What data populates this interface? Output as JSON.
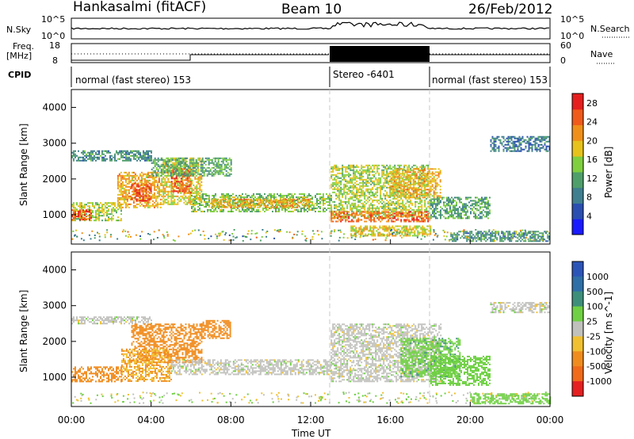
{
  "header": {
    "station": "Hankasalmi (fitACF)",
    "beam": "Beam 10",
    "date": "26/Feb/2012"
  },
  "strip_labels": {
    "nsky": "N.Sky",
    "nsearch": "N.Search",
    "freq_line1": "Freq.",
    "freq_line2": "[MHz]",
    "nave": "Nave",
    "cpid": "CPID"
  },
  "strip_ticks": {
    "nsky_top": "10^5",
    "nsky_bottom": "10^0",
    "nsearch_top": "10^5",
    "nsearch_bottom": "10^0",
    "freq_top": "18",
    "freq_bottom": "8",
    "nave_top": "60",
    "nave_bottom": "0"
  },
  "cpid_segments": [
    {
      "label": "normal (fast stereo) 153",
      "start_hour": 0,
      "end_hour": 13
    },
    {
      "label": "Stereo -6401",
      "start_hour": 13,
      "end_hour": 18
    },
    {
      "label": "normal (fast stereo) 153",
      "start_hour": 18,
      "end_hour": 24
    }
  ],
  "chart_data": [
    {
      "type": "heatmap",
      "title": "Power",
      "xlabel": "Time UT",
      "ylabel": "Slant Range [km]",
      "x_ticks": [
        "00:00",
        "04:00",
        "08:00",
        "12:00",
        "16:00",
        "20:00",
        "00:00"
      ],
      "y_ticks": [
        "1000",
        "2000",
        "3000",
        "4000"
      ],
      "xlim_hours": [
        0,
        24
      ],
      "ylim_km": [
        180,
        4500
      ],
      "colorbar": {
        "label": "Power [dB]",
        "ticks": [
          "4",
          "8",
          "12",
          "16",
          "20",
          "24",
          "28"
        ],
        "range": [
          0,
          30
        ]
      },
      "bands": [
        {
          "start_hour": 0.0,
          "end_hour": 2.5,
          "range_km": [
            850,
            1350
          ],
          "value": 16
        },
        {
          "start_hour": 0.0,
          "end_hour": 1.0,
          "range_km": [
            850,
            1150
          ],
          "value": 26
        },
        {
          "start_hour": 2.3,
          "end_hour": 4.5,
          "range_km": [
            1200,
            2200
          ],
          "value": 20
        },
        {
          "start_hour": 3.0,
          "end_hour": 4.0,
          "range_km": [
            1400,
            1900
          ],
          "value": 26
        },
        {
          "start_hour": 4.5,
          "end_hour": 6.5,
          "range_km": [
            1300,
            2600
          ],
          "value": 18
        },
        {
          "start_hour": 5.0,
          "end_hour": 6.0,
          "range_km": [
            1600,
            2300
          ],
          "value": 25
        },
        {
          "start_hour": 0.0,
          "end_hour": 4.0,
          "range_km": [
            2500,
            2800
          ],
          "value": 10
        },
        {
          "start_hour": 4.0,
          "end_hour": 8.0,
          "range_km": [
            2100,
            2600
          ],
          "value": 12
        },
        {
          "start_hour": 6.0,
          "end_hour": 13.0,
          "range_km": [
            1100,
            1600
          ],
          "value": 14
        },
        {
          "start_hour": 7.0,
          "end_hour": 12.0,
          "range_km": [
            1200,
            1450
          ],
          "value": 20
        },
        {
          "start_hour": 13.0,
          "end_hour": 18.0,
          "range_km": [
            900,
            2400
          ],
          "value": 16
        },
        {
          "start_hour": 13.0,
          "end_hour": 18.0,
          "range_km": [
            800,
            1100
          ],
          "value": 24
        },
        {
          "start_hour": 14.0,
          "end_hour": 18.0,
          "range_km": [
            400,
            700
          ],
          "value": 18
        },
        {
          "start_hour": 16.0,
          "end_hour": 18.5,
          "range_km": [
            1500,
            2300
          ],
          "value": 20
        },
        {
          "start_hour": 18.0,
          "end_hour": 21.0,
          "range_km": [
            900,
            1500
          ],
          "value": 12
        },
        {
          "start_hour": 19.0,
          "end_hour": 24.0,
          "range_km": [
            250,
            550
          ],
          "value": 10
        },
        {
          "start_hour": 21.0,
          "end_hour": 24.0,
          "range_km": [
            2800,
            3200
          ],
          "value": 8
        }
      ]
    },
    {
      "type": "heatmap",
      "title": "Velocity",
      "xlabel": "Time UT",
      "ylabel": "Slant Range [km]",
      "x_ticks": [
        "00:00",
        "04:00",
        "08:00",
        "12:00",
        "16:00",
        "20:00",
        "00:00"
      ],
      "y_ticks": [
        "1000",
        "2000",
        "3000",
        "4000"
      ],
      "xlim_hours": [
        0,
        24
      ],
      "ylim_km": [
        180,
        4500
      ],
      "colorbar": {
        "label": "Velocity [m s^-1]",
        "ticks": [
          "1000",
          "500",
          "100",
          "25",
          "-25",
          "-100",
          "-500",
          "-1000"
        ]
      },
      "bands": [
        {
          "start_hour": 0.0,
          "end_hour": 4.0,
          "range_km": [
            2500,
            2700
          ],
          "value": 0
        },
        {
          "start_hour": 3.0,
          "end_hour": 6.5,
          "range_km": [
            1400,
            2500
          ],
          "value": -200
        },
        {
          "start_hour": 6.5,
          "end_hour": 8.0,
          "range_km": [
            2100,
            2600
          ],
          "value": -300
        },
        {
          "start_hour": 0.0,
          "end_hour": 2.5,
          "range_km": [
            900,
            1300
          ],
          "value": -150
        },
        {
          "start_hour": 2.5,
          "end_hour": 5.0,
          "range_km": [
            900,
            1800
          ],
          "value": -100
        },
        {
          "start_hour": 5.0,
          "end_hour": 13.0,
          "range_km": [
            1100,
            1500
          ],
          "value": 0
        },
        {
          "start_hour": 13.0,
          "end_hour": 18.5,
          "range_km": [
            900,
            2500
          ],
          "value": 0
        },
        {
          "start_hour": 16.5,
          "end_hour": 19.5,
          "range_km": [
            1000,
            2100
          ],
          "value": 80
        },
        {
          "start_hour": 18.0,
          "end_hour": 21.0,
          "range_km": [
            800,
            1600
          ],
          "value": 60
        },
        {
          "start_hour": 20.0,
          "end_hour": 24.0,
          "range_km": [
            250,
            550
          ],
          "value": 70
        },
        {
          "start_hour": 21.0,
          "end_hour": 24.0,
          "range_km": [
            2800,
            3100
          ],
          "value": 0
        }
      ]
    }
  ]
}
